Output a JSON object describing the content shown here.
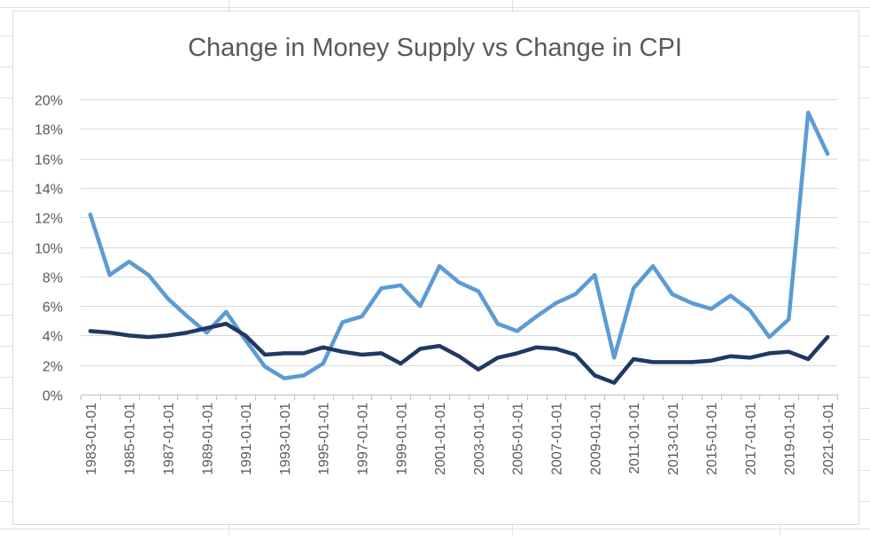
{
  "chart_data": {
    "type": "line",
    "title": "Change in Money Supply vs Change in CPI",
    "xlabel": "",
    "ylabel": "",
    "ylim": [
      0,
      20
    ],
    "ytick_labels": [
      "0%",
      "2%",
      "4%",
      "6%",
      "8%",
      "10%",
      "12%",
      "14%",
      "16%",
      "18%",
      "20%"
    ],
    "y_ticks": [
      0,
      2,
      4,
      6,
      8,
      10,
      12,
      14,
      16,
      18,
      20
    ],
    "grid": true,
    "legend": "none",
    "x": [
      "1983-01-01",
      "1984-01-01",
      "1985-01-01",
      "1986-01-01",
      "1987-01-01",
      "1988-01-01",
      "1989-01-01",
      "1990-01-01",
      "1991-01-01",
      "1992-01-01",
      "1993-01-01",
      "1994-01-01",
      "1995-01-01",
      "1996-01-01",
      "1997-01-01",
      "1998-01-01",
      "1999-01-01",
      "2000-01-01",
      "2001-01-01",
      "2002-01-01",
      "2003-01-01",
      "2004-01-01",
      "2005-01-01",
      "2006-01-01",
      "2007-01-01",
      "2008-01-01",
      "2009-01-01",
      "2010-01-01",
      "2011-01-01",
      "2012-01-01",
      "2013-01-01",
      "2014-01-01",
      "2015-01-01",
      "2016-01-01",
      "2017-01-01",
      "2018-01-01",
      "2019-01-01",
      "2020-01-01",
      "2021-01-01"
    ],
    "x_tick_labels": [
      "1983-01-01",
      "1985-01-01",
      "1987-01-01",
      "1989-01-01",
      "1991-01-01",
      "1993-01-01",
      "1995-01-01",
      "1997-01-01",
      "1999-01-01",
      "2001-01-01",
      "2003-01-01",
      "2005-01-01",
      "2007-01-01",
      "2009-01-01",
      "2011-01-01",
      "2013-01-01",
      "2015-01-01",
      "2017-01-01",
      "2019-01-01",
      "2021-01-01"
    ],
    "series": [
      {
        "color": "#5b9bd5",
        "values": [
          12.2,
          8.1,
          9.0,
          8.1,
          6.5,
          5.3,
          4.2,
          5.6,
          3.7,
          1.9,
          1.1,
          1.3,
          2.1,
          4.9,
          5.3,
          7.2,
          7.4,
          6.0,
          8.7,
          7.6,
          7.0,
          4.8,
          4.3,
          5.3,
          6.2,
          6.8,
          8.1,
          2.5,
          7.2,
          8.7,
          6.8,
          6.2,
          5.8,
          6.7,
          5.7,
          3.9,
          5.1,
          19.1,
          16.3
        ]
      },
      {
        "color": "#203864",
        "values": [
          4.3,
          4.2,
          4.0,
          3.9,
          4.0,
          4.2,
          4.5,
          4.8,
          4.0,
          2.7,
          2.8,
          2.8,
          3.2,
          2.9,
          2.7,
          2.8,
          2.1,
          3.1,
          3.3,
          2.6,
          1.7,
          2.5,
          2.8,
          3.2,
          3.1,
          2.7,
          1.3,
          0.8,
          2.4,
          2.2,
          2.2,
          2.2,
          2.3,
          2.6,
          2.5,
          2.8,
          2.9,
          2.4,
          3.9
        ]
      }
    ]
  }
}
